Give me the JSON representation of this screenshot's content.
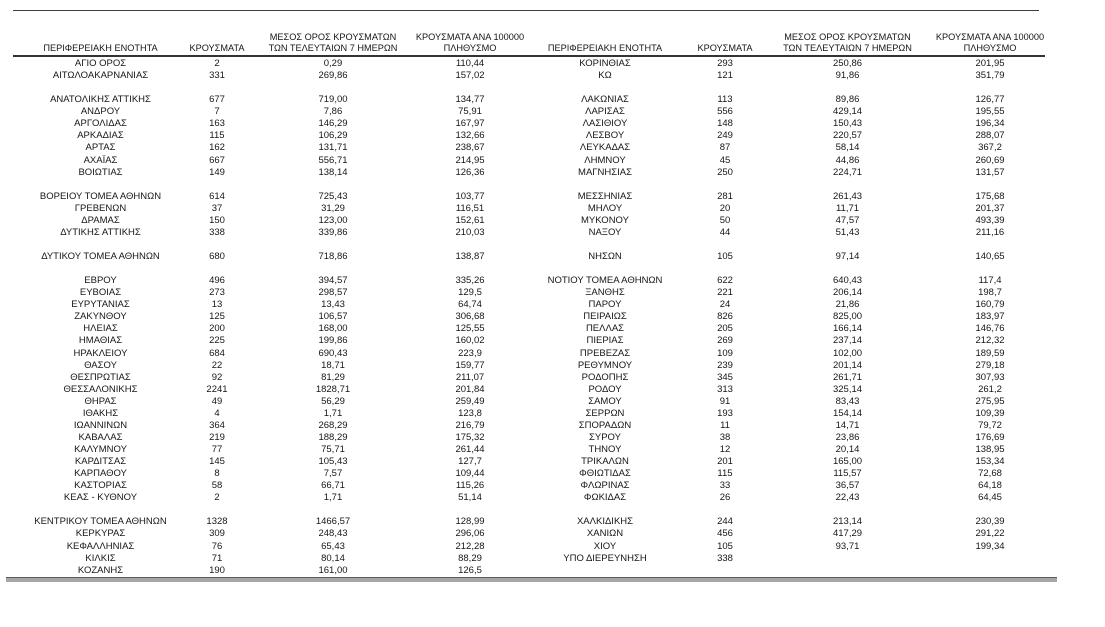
{
  "table": {
    "columns": {
      "region": "ΠΕΡΙΦΕΡΕΙΑΚΗ ΕΝΟΤΗΤΑ",
      "cases": "ΚΡΟΥΣΜΑΤΑ",
      "avg7_l1": "ΜΕΣΟΣ ΟΡΟΣ ΚΡΟΥΣΜΑΤΩΝ",
      "avg7_l2": "ΤΩΝ ΤΕΛΕΥΤΑΙΩΝ 7 ΗΜΕΡΩΝ",
      "per100k_l1": "ΚΡΟΥΣΜΑΤΑ ΑΝΑ 100000",
      "per100k_l2": "ΠΛΗΘΥΣΜΟ"
    },
    "rows": [
      [
        "ΑΓΙΟ ΟΡΟΣ",
        "2",
        "0,29",
        "110,44",
        "ΚΟΡΙΝΘΙΑΣ",
        "293",
        "250,86",
        "201,95"
      ],
      [
        "ΑΙΤΩΛΟΑΚΑΡΝΑΝΙΑΣ",
        "331",
        "269,86",
        "157,02",
        "ΚΩ",
        "121",
        "91,86",
        "351,79"
      ],
      [
        "",
        "",
        "",
        "",
        "",
        "",
        "",
        ""
      ],
      [
        "ΑΝΑΤΟΛΙΚΗΣ ΑΤΤΙΚΗΣ",
        "677",
        "719,00",
        "134,77",
        "ΛΑΚΩΝΙΑΣ",
        "113",
        "89,86",
        "126,77"
      ],
      [
        "ΑΝΔΡΟΥ",
        "7",
        "7,86",
        "75,91",
        "ΛΑΡΙΣΑΣ",
        "556",
        "429,14",
        "195,55"
      ],
      [
        "ΑΡΓΟΛΙΔΑΣ",
        "163",
        "146,29",
        "167,97",
        "ΛΑΣΙΘΙΟΥ",
        "148",
        "150,43",
        "196,34"
      ],
      [
        "ΑΡΚΑΔΙΑΣ",
        "115",
        "106,29",
        "132,66",
        "ΛΕΣΒΟΥ",
        "249",
        "220,57",
        "288,07"
      ],
      [
        "ΑΡΤΑΣ",
        "162",
        "131,71",
        "238,67",
        "ΛΕΥΚΑΔΑΣ",
        "87",
        "58,14",
        "367,2"
      ],
      [
        "ΑΧΑΪΑΣ",
        "667",
        "556,71",
        "214,95",
        "ΛΗΜΝΟΥ",
        "45",
        "44,86",
        "260,69"
      ],
      [
        "ΒΟΙΩΤΙΑΣ",
        "149",
        "138,14",
        "126,36",
        "ΜΑΓΝΗΣΙΑΣ",
        "250",
        "224,71",
        "131,57"
      ],
      [
        "",
        "",
        "",
        "",
        "",
        "",
        "",
        ""
      ],
      [
        "ΒΟΡΕΙΟΥ ΤΟΜΕΑ ΑΘΗΝΩΝ",
        "614",
        "725,43",
        "103,77",
        "ΜΕΣΣΗΝΙΑΣ",
        "281",
        "261,43",
        "175,68"
      ],
      [
        "ΓΡΕΒΕΝΩΝ",
        "37",
        "31,29",
        "116,51",
        "ΜΗΛΟΥ",
        "20",
        "11,71",
        "201,37"
      ],
      [
        "ΔΡΑΜΑΣ",
        "150",
        "123,00",
        "152,61",
        "ΜΥΚΟΝΟΥ",
        "50",
        "47,57",
        "493,39"
      ],
      [
        "ΔΥΤΙΚΗΣ ΑΤΤΙΚΗΣ",
        "338",
        "339,86",
        "210,03",
        "ΝΑΞΟΥ",
        "44",
        "51,43",
        "211,16"
      ],
      [
        "",
        "",
        "",
        "",
        "",
        "",
        "",
        ""
      ],
      [
        "ΔΥΤΙΚΟΥ ΤΟΜΕΑ ΑΘΗΝΩΝ",
        "680",
        "718,86",
        "138,87",
        "ΝΗΣΩΝ",
        "105",
        "97,14",
        "140,65"
      ],
      [
        "",
        "",
        "",
        "",
        "",
        "",
        "",
        ""
      ],
      [
        "ΕΒΡΟΥ",
        "496",
        "394,57",
        "335,26",
        "ΝΟΤΙΟΥ ΤΟΜΕΑ ΑΘΗΝΩΝ",
        "622",
        "640,43",
        "117,4"
      ],
      [
        "ΕΥΒΟΙΑΣ",
        "273",
        "298,57",
        "129,5",
        "ΞΑΝΘΗΣ",
        "221",
        "206,14",
        "198,7"
      ],
      [
        "ΕΥΡΥΤΑΝΙΑΣ",
        "13",
        "13,43",
        "64,74",
        "ΠΑΡΟΥ",
        "24",
        "21,86",
        "160,79"
      ],
      [
        "ΖΑΚΥΝΘΟΥ",
        "125",
        "106,57",
        "306,68",
        "ΠΕΙΡΑΙΩΣ",
        "826",
        "825,00",
        "183,97"
      ],
      [
        "ΗΛΕΙΑΣ",
        "200",
        "168,00",
        "125,55",
        "ΠΕΛΛΑΣ",
        "205",
        "166,14",
        "146,76"
      ],
      [
        "ΗΜΑΘΙΑΣ",
        "225",
        "199,86",
        "160,02",
        "ΠΙΕΡΙΑΣ",
        "269",
        "237,14",
        "212,32"
      ],
      [
        "ΗΡΑΚΛΕΙΟΥ",
        "684",
        "690,43",
        "223,9",
        "ΠΡΕΒΕΖΑΣ",
        "109",
        "102,00",
        "189,59"
      ],
      [
        "ΘΑΣΟΥ",
        "22",
        "18,71",
        "159,77",
        "ΡΕΘΥΜΝΟΥ",
        "239",
        "201,14",
        "279,18"
      ],
      [
        "ΘΕΣΠΡΩΤΙΑΣ",
        "92",
        "81,29",
        "211,07",
        "ΡΟΔΟΠΗΣ",
        "345",
        "261,71",
        "307,93"
      ],
      [
        "ΘΕΣΣΑΛΟΝΙΚΗΣ",
        "2241",
        "1828,71",
        "201,84",
        "ΡΟΔΟΥ",
        "313",
        "325,14",
        "261,2"
      ],
      [
        "ΘΗΡΑΣ",
        "49",
        "56,29",
        "259,49",
        "ΣΑΜΟΥ",
        "91",
        "83,43",
        "275,95"
      ],
      [
        "ΙΘΑΚΗΣ",
        "4",
        "1,71",
        "123,8",
        "ΣΕΡΡΩΝ",
        "193",
        "154,14",
        "109,39"
      ],
      [
        "ΙΩΑΝΝΙΝΩΝ",
        "364",
        "268,29",
        "216,79",
        "ΣΠΟΡΑΔΩΝ",
        "11",
        "14,71",
        "79,72"
      ],
      [
        "ΚΑΒΑΛΑΣ",
        "219",
        "188,29",
        "175,32",
        "ΣΥΡΟΥ",
        "38",
        "23,86",
        "176,69"
      ],
      [
        "ΚΑΛΥΜΝΟΥ",
        "77",
        "75,71",
        "261,44",
        "ΤΗΝΟΥ",
        "12",
        "20,14",
        "138,95"
      ],
      [
        "ΚΑΡΔΙΤΣΑΣ",
        "145",
        "105,43",
        "127,7",
        "ΤΡΙΚΑΛΩΝ",
        "201",
        "165,00",
        "153,34"
      ],
      [
        "ΚΑΡΠΑΘΟΥ",
        "8",
        "7,57",
        "109,44",
        "ΦΘΙΩΤΙΔΑΣ",
        "115",
        "115,57",
        "72,68"
      ],
      [
        "ΚΑΣΤΟΡΙΑΣ",
        "58",
        "66,71",
        "115,26",
        "ΦΛΩΡΙΝΑΣ",
        "33",
        "36,57",
        "64,18"
      ],
      [
        "ΚΕΑΣ - ΚΥΘΝΟΥ",
        "2",
        "1,71",
        "51,14",
        "ΦΩΚΙΔΑΣ",
        "26",
        "22,43",
        "64,45"
      ],
      [
        "",
        "",
        "",
        "",
        "",
        "",
        "",
        ""
      ],
      [
        "ΚΕΝΤΡΙΚΟΥ ΤΟΜΕΑ ΑΘΗΝΩΝ",
        "1328",
        "1466,57",
        "128,99",
        "ΧΑΛΚΙΔΙΚΗΣ",
        "244",
        "213,14",
        "230,39"
      ],
      [
        "ΚΕΡΚΥΡΑΣ",
        "309",
        "248,43",
        "296,06",
        "ΧΑΝΙΩΝ",
        "456",
        "417,29",
        "291,22"
      ],
      [
        "ΚΕΦΑΛΛΗΝΙΑΣ",
        "76",
        "65,43",
        "212,28",
        "ΧΙΟΥ",
        "105",
        "93,71",
        "199,34"
      ],
      [
        "ΚΙΛΚΙΣ",
        "71",
        "80,14",
        "88,29",
        "ΥΠΟ ΔΙΕΡΕΥΝΗΣΗ",
        "338",
        "",
        ""
      ],
      [
        "ΚΟΖΑΝΗΣ",
        "190",
        "161,00",
        "126,5",
        "",
        "",
        "",
        ""
      ]
    ]
  },
  "colors": {
    "background": "#ffffff",
    "text": "#161616",
    "rule_dark": "#3f3f3f",
    "rule_thick_gray": "#a6a6a6"
  }
}
